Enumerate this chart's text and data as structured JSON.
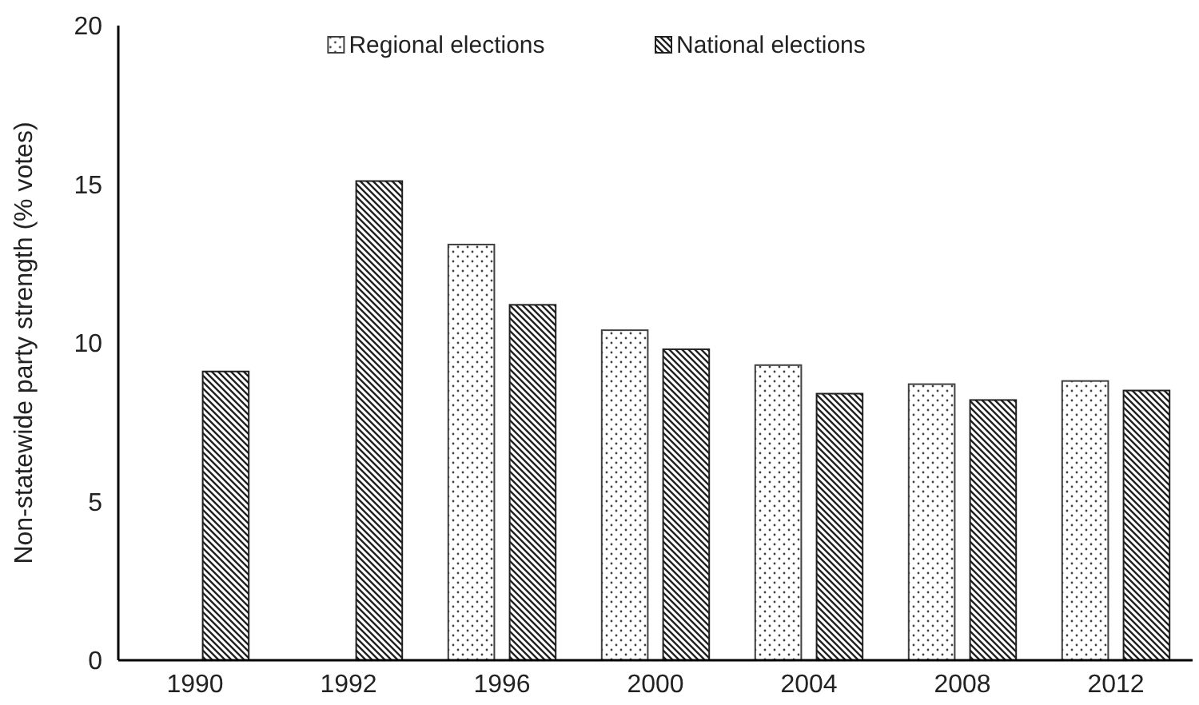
{
  "chart_data": {
    "type": "bar",
    "ylabel": "Non-statewide party strength (% votes)",
    "categories": [
      "1990",
      "1992",
      "1996",
      "2000",
      "2004",
      "2008",
      "2012"
    ],
    "series": [
      {
        "name": "Regional elections",
        "color": "#404040",
        "values": [
          null,
          null,
          13.1,
          10.4,
          9.3,
          8.7,
          8.8
        ]
      },
      {
        "name": "National elections",
        "color": "#202020",
        "values": [
          9.1,
          15.1,
          11.2,
          9.8,
          8.4,
          8.2,
          8.5
        ]
      }
    ],
    "ylim": [
      0,
      20
    ],
    "yticks": [
      0,
      5,
      10,
      15,
      20
    ],
    "legend": "top",
    "grid": false
  }
}
